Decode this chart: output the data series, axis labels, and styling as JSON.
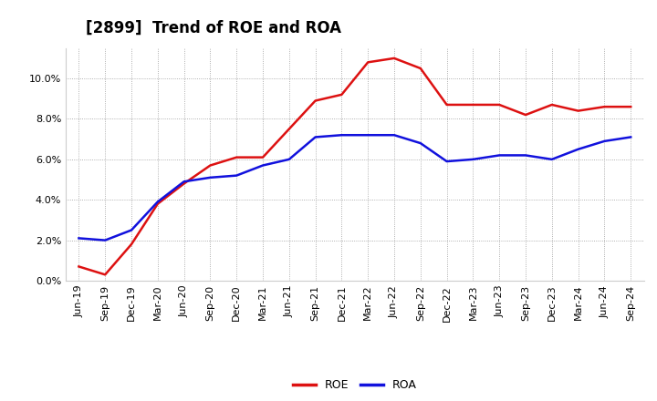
{
  "title": "[2899]  Trend of ROE and ROA",
  "x_labels": [
    "Jun-19",
    "Sep-19",
    "Dec-19",
    "Mar-20",
    "Jun-20",
    "Sep-20",
    "Dec-20",
    "Mar-21",
    "Jun-21",
    "Sep-21",
    "Dec-21",
    "Mar-22",
    "Jun-22",
    "Sep-22",
    "Dec-22",
    "Mar-23",
    "Jun-23",
    "Sep-23",
    "Dec-23",
    "Mar-24",
    "Jun-24",
    "Sep-24"
  ],
  "roe": [
    0.7,
    0.3,
    1.8,
    3.8,
    4.8,
    5.7,
    6.1,
    6.1,
    7.5,
    8.9,
    9.2,
    10.8,
    11.0,
    10.5,
    8.7,
    8.7,
    8.7,
    8.2,
    8.7,
    8.4,
    8.6,
    8.6
  ],
  "roa": [
    2.1,
    2.0,
    2.5,
    3.9,
    4.9,
    5.1,
    5.2,
    5.7,
    6.0,
    7.1,
    7.2,
    7.2,
    7.2,
    6.8,
    5.9,
    6.0,
    6.2,
    6.2,
    6.0,
    6.5,
    6.9,
    7.1
  ],
  "roe_color": "#dd1111",
  "roa_color": "#1111dd",
  "background_color": "#ffffff",
  "grid_color": "#999999",
  "ylim": [
    0,
    11.5
  ],
  "yticks": [
    0.0,
    2.0,
    4.0,
    6.0,
    8.0,
    10.0
  ],
  "legend_labels": [
    "ROE",
    "ROA"
  ],
  "title_fontsize": 12,
  "label_fontsize": 8,
  "line_width": 1.8
}
